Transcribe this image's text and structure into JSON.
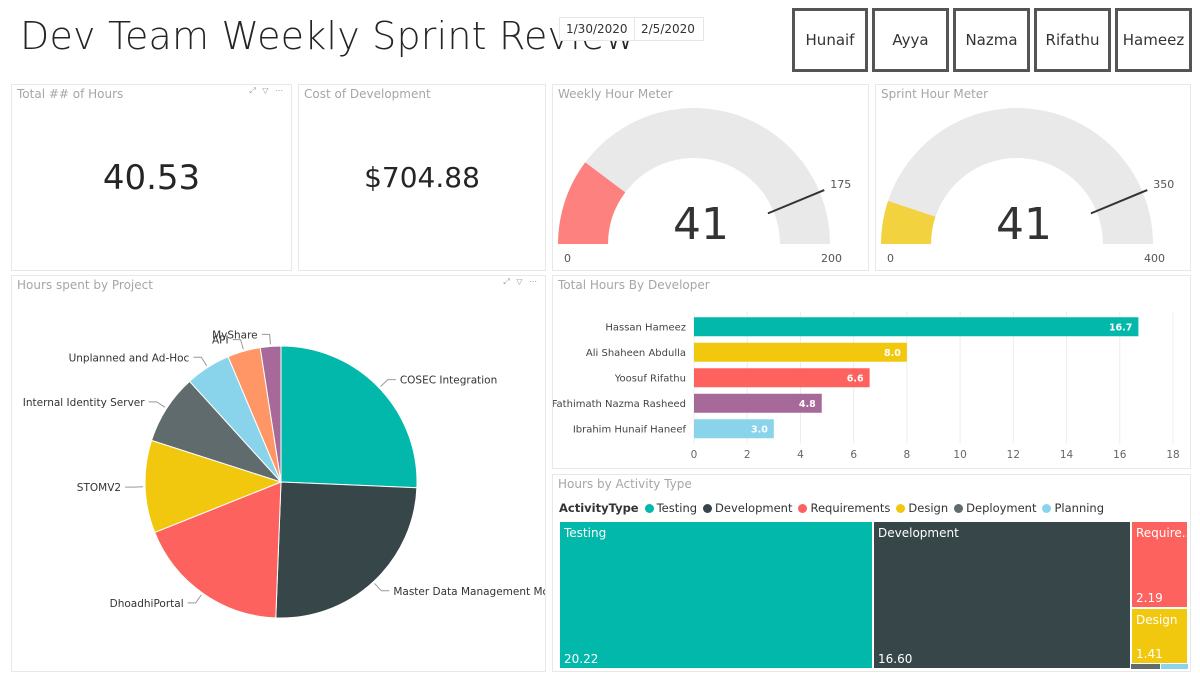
{
  "header": {
    "title": "Dev Team Weekly Sprint Review",
    "date_start": "1/30/2020",
    "date_end": "2/5/2020",
    "people": [
      "Hunaif",
      "Ayya",
      "Nazma",
      "Rifathu",
      "Hameez"
    ]
  },
  "kpis": {
    "hours": {
      "title": "Total ## of Hours",
      "value": "40.53"
    },
    "cost": {
      "title": "Cost of Development",
      "value": "$704.88"
    }
  },
  "weekly_gauge": {
    "title": "Weekly Hour Meter",
    "value": 41,
    "value_label": "41",
    "min": 0,
    "max": 200,
    "target": 175,
    "min_label": "0",
    "max_label": "200",
    "target_label": "175",
    "color": "#fd817e"
  },
  "sprint_gauge": {
    "title": "Sprint Hour Meter",
    "value": 41,
    "value_label": "41",
    "min": 0,
    "max": 400,
    "target": 350,
    "min_label": "0",
    "max_label": "400",
    "target_label": "350",
    "color": "#f2d33f"
  },
  "chart_data": [
    {
      "type": "pie",
      "title": "Hours spent by Project",
      "labels": [
        "COSEC Integration",
        "Master Data Management Module",
        "DhoadhiPortal",
        "STOMV2",
        "Internal Identity Server",
        "Unplanned and Ad-Hoc",
        "API",
        "MyShare"
      ],
      "values": [
        10.5,
        10.2,
        7.5,
        4.5,
        3.4,
        2.2,
        1.6,
        1.0
      ],
      "colors": [
        "#01b8aa",
        "#374649",
        "#fd625e",
        "#f2c80f",
        "#5f6b6d",
        "#8ad4eb",
        "#fe9666",
        "#a66999"
      ]
    },
    {
      "type": "bar",
      "orientation": "horizontal",
      "title": "Total Hours By Developer",
      "categories": [
        "Hassan Hameez",
        "Ali Shaheen Abdulla",
        "Yoosuf Rifathu",
        "Fathimath Nazma Rasheed",
        "Ibrahim Hunaif Haneef"
      ],
      "values": [
        16.7,
        8.0,
        6.6,
        4.8,
        3.0
      ],
      "value_labels": [
        "16.7",
        "8.0",
        "6.6",
        "4.8",
        "3.0"
      ],
      "colors": [
        "#01b8aa",
        "#f2c80f",
        "#fd625e",
        "#a66999",
        "#8ad4eb"
      ],
      "xlim": [
        0,
        18
      ],
      "xticks": [
        "0",
        "2",
        "4",
        "6",
        "8",
        "10",
        "12",
        "14",
        "16",
        "18"
      ]
    },
    {
      "type": "treemap",
      "title": "Hours by Activity Type",
      "legend_title": "ActivityType",
      "legend": [
        {
          "name": "Testing",
          "color": "#01b8aa"
        },
        {
          "name": "Development",
          "color": "#374649"
        },
        {
          "name": "Requirements",
          "color": "#fd625e"
        },
        {
          "name": "Design",
          "color": "#f2c80f"
        },
        {
          "name": "Deployment",
          "color": "#5f6b6d"
        },
        {
          "name": "Planning",
          "color": "#8ad4eb"
        }
      ],
      "cells": [
        {
          "name": "Testing",
          "value": 20.22,
          "value_label": "20.22",
          "label": "Testing",
          "color": "#01b8aa"
        },
        {
          "name": "Development",
          "value": 16.6,
          "value_label": "16.60",
          "label": "Development",
          "color": "#374649"
        },
        {
          "name": "Requirements",
          "value": 2.19,
          "value_label": "2.19",
          "label": "Require...",
          "color": "#fd625e"
        },
        {
          "name": "Design",
          "value": 1.41,
          "value_label": "1.41",
          "label": "Design",
          "color": "#f2c80f"
        },
        {
          "name": "Deployment",
          "value": 0.08,
          "color": "#5f6b6d"
        },
        {
          "name": "Planning",
          "value": 0.03,
          "color": "#8ad4eb"
        }
      ]
    }
  ]
}
